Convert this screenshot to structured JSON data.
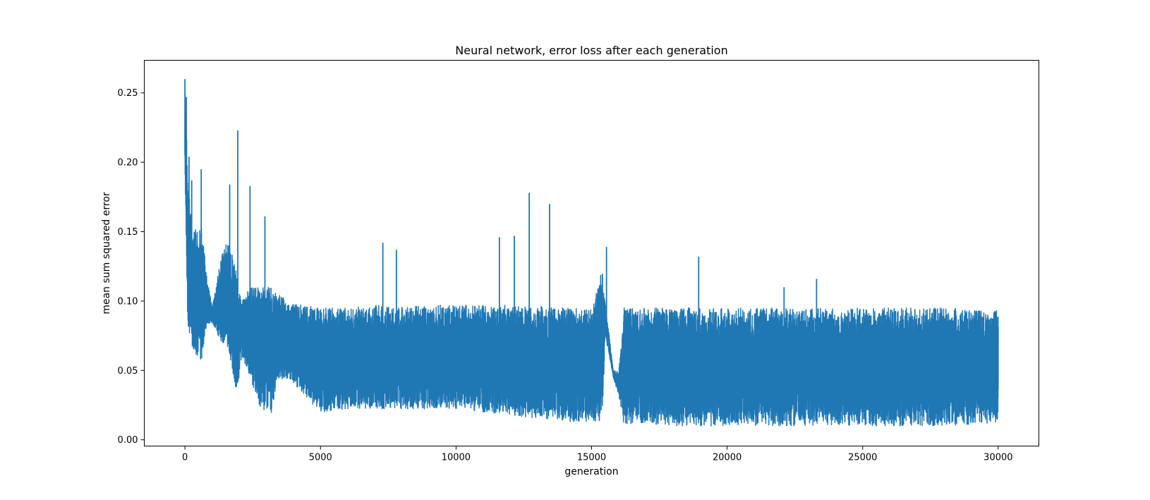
{
  "chart_data": {
    "type": "line",
    "title": "Neural network, error loss after each generation",
    "xlabel": "generation",
    "ylabel": "mean sum squared error",
    "xlim": [
      -1500,
      31500
    ],
    "ylim": [
      -0.0045,
      0.2735
    ],
    "x_ticks": [
      0,
      5000,
      10000,
      15000,
      20000,
      25000,
      30000
    ],
    "x_tick_labels": [
      "0",
      "5000",
      "10000",
      "15000",
      "20000",
      "25000",
      "30000"
    ],
    "y_ticks": [
      0.0,
      0.05,
      0.1,
      0.15,
      0.2,
      0.25
    ],
    "y_tick_labels": [
      "0.00",
      "0.05",
      "0.10",
      "0.15",
      "0.20",
      "0.25"
    ],
    "grid": false,
    "legend": "none",
    "series": [
      {
        "color": "#1f77b4",
        "envelope": {
          "x": [
            0,
            100,
            300,
            600,
            800,
            1000,
            1300,
            1600,
            1900,
            2100,
            2400,
            2800,
            3200,
            3400,
            4000,
            5000,
            6000,
            7000,
            8000,
            9000,
            10000,
            11000,
            12000,
            13000,
            14000,
            15000,
            15400,
            15500,
            15800,
            16000,
            16200,
            17000,
            18000,
            19000,
            20000,
            22000,
            24000,
            26000,
            28000,
            30000
          ],
          "low": [
            0.195,
            0.08,
            0.065,
            0.055,
            0.082,
            0.085,
            0.072,
            0.065,
            0.03,
            0.06,
            0.045,
            0.022,
            0.018,
            0.045,
            0.04,
            0.02,
            0.022,
            0.022,
            0.022,
            0.022,
            0.022,
            0.02,
            0.018,
            0.015,
            0.013,
            0.013,
            0.011,
            0.075,
            0.045,
            0.032,
            0.01,
            0.01,
            0.01,
            0.01,
            0.01,
            0.01,
            0.01,
            0.01,
            0.01,
            0.012
          ],
          "high": [
            0.26,
            0.19,
            0.15,
            0.155,
            0.12,
            0.095,
            0.13,
            0.145,
            0.12,
            0.1,
            0.11,
            0.11,
            0.11,
            0.105,
            0.098,
            0.095,
            0.095,
            0.097,
            0.097,
            0.097,
            0.097,
            0.097,
            0.097,
            0.097,
            0.095,
            0.095,
            0.125,
            0.1,
            0.05,
            0.05,
            0.095,
            0.095,
            0.095,
            0.095,
            0.095,
            0.095,
            0.095,
            0.095,
            0.095,
            0.093
          ]
        },
        "spikes": [
          {
            "x": 0,
            "y": 0.26
          },
          {
            "x": 50,
            "y": 0.247
          },
          {
            "x": 150,
            "y": 0.204
          },
          {
            "x": 250,
            "y": 0.187
          },
          {
            "x": 600,
            "y": 0.195
          },
          {
            "x": 1650,
            "y": 0.184
          },
          {
            "x": 1950,
            "y": 0.223
          },
          {
            "x": 2400,
            "y": 0.183
          },
          {
            "x": 2950,
            "y": 0.161
          },
          {
            "x": 7300,
            "y": 0.142
          },
          {
            "x": 7800,
            "y": 0.137
          },
          {
            "x": 11600,
            "y": 0.146
          },
          {
            "x": 12150,
            "y": 0.147
          },
          {
            "x": 12700,
            "y": 0.178
          },
          {
            "x": 13450,
            "y": 0.17
          },
          {
            "x": 15550,
            "y": 0.139
          },
          {
            "x": 18950,
            "y": 0.132
          },
          {
            "x": 22100,
            "y": 0.11
          },
          {
            "x": 23300,
            "y": 0.116
          }
        ]
      }
    ]
  }
}
